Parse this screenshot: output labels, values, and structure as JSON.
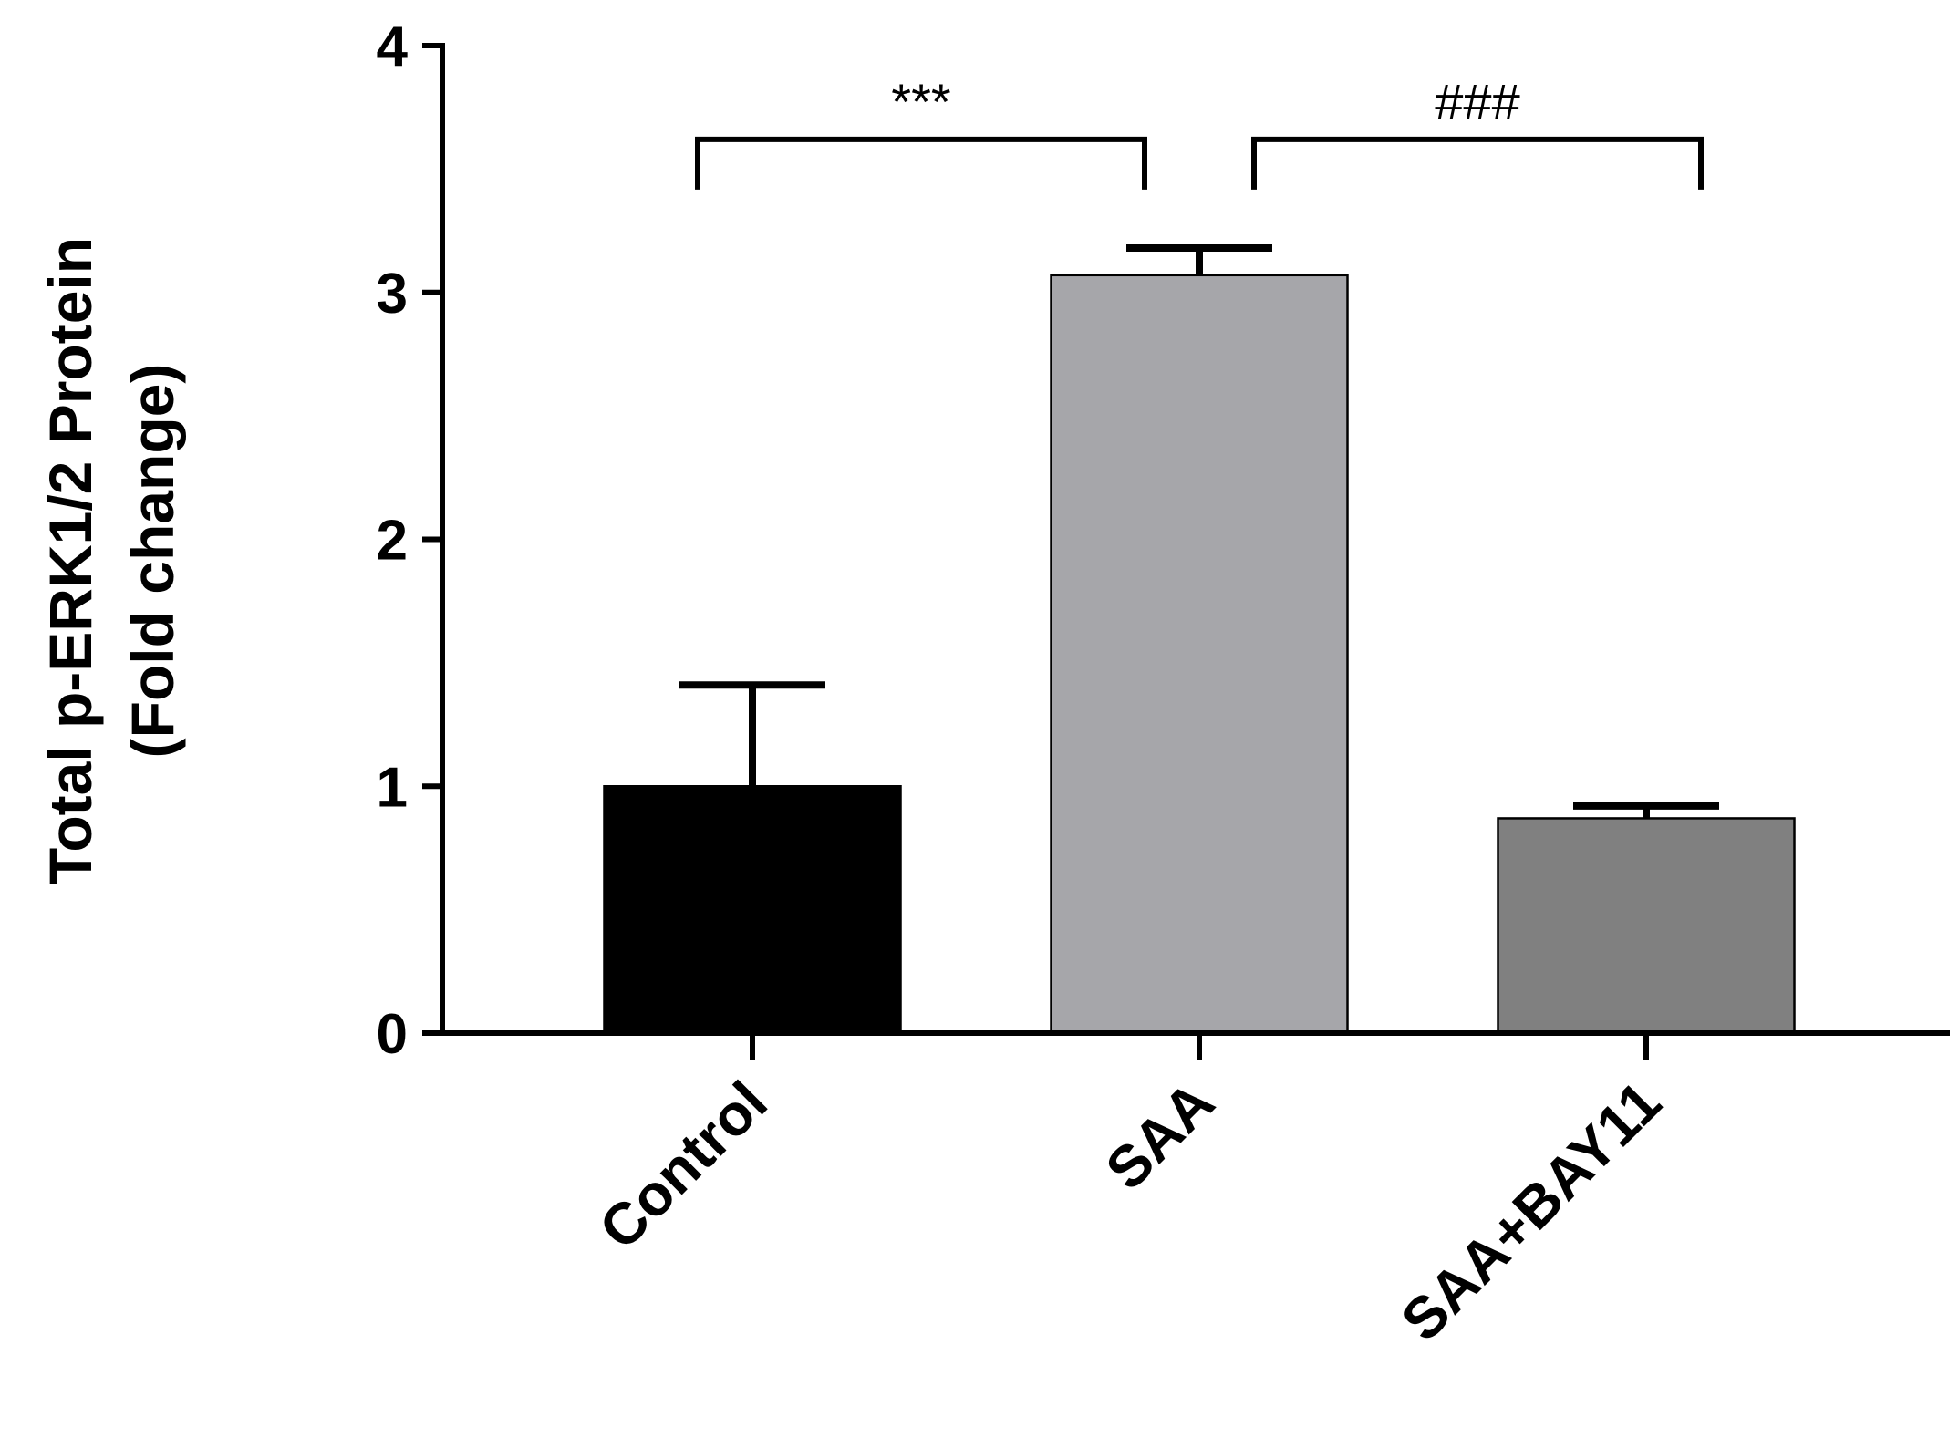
{
  "chart_data": {
    "type": "bar",
    "title": "",
    "ylabel_lines": [
      "Total p-ERK1/2 Protein",
      "(Fold change)"
    ],
    "xlabel": "",
    "ylim": [
      0,
      4
    ],
    "yticks": [
      "0",
      "1",
      "2",
      "3",
      "4"
    ],
    "categories": [
      "Control",
      "SAA",
      "SAA+BAY11"
    ],
    "values": [
      1.0,
      3.07,
      0.87
    ],
    "errors": [
      0.41,
      0.11,
      0.05
    ],
    "colors": [
      "#000000",
      "#a6a6aa",
      "#808080"
    ],
    "grid": false,
    "annotations": [
      {
        "label": "***",
        "from": 0,
        "to": 1,
        "y": 3.62
      },
      {
        "label": "###",
        "from": 1,
        "to": 2,
        "y": 3.62
      }
    ]
  }
}
